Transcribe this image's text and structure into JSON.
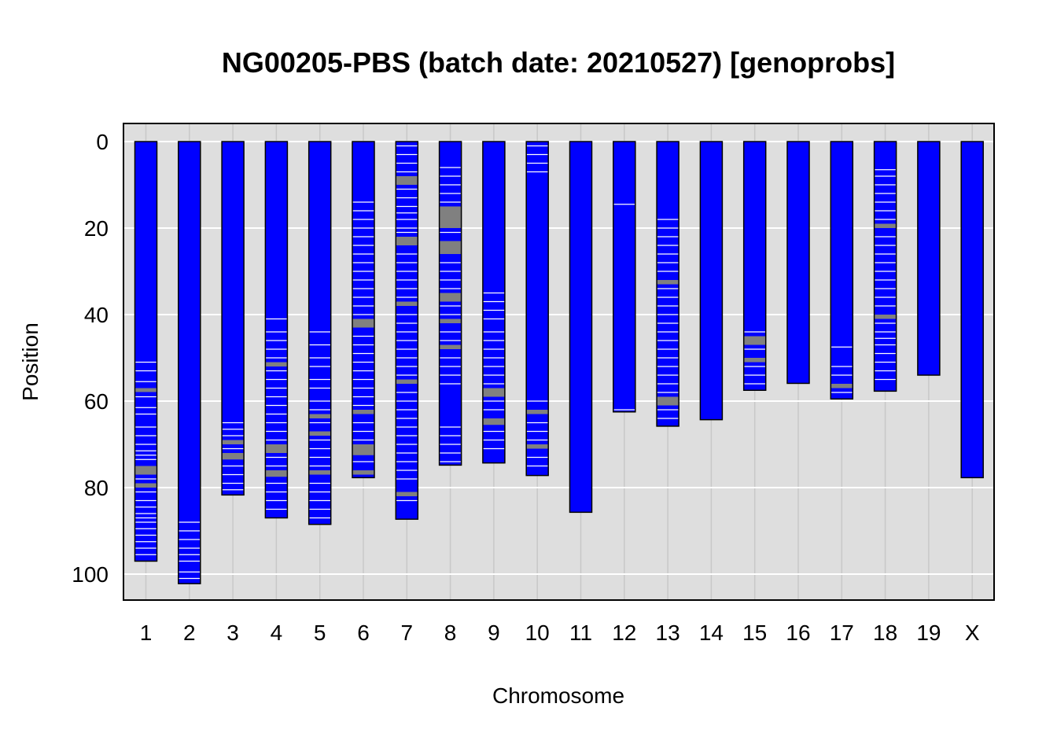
{
  "chart_data": {
    "type": "chromosome_ideogram",
    "title": "NG00205-PBS (batch date: 20210527) [genoprobs]",
    "xlabel": "Chromosome",
    "ylabel": "Position",
    "y_axis_reversed": true,
    "ylim": [
      0,
      106
    ],
    "yticks": [
      0,
      20,
      40,
      60,
      80,
      100
    ],
    "grid": true,
    "colors": {
      "homozygous": "#0000ff",
      "heterozygous": "#808080",
      "background": "#dedede",
      "gridline": "#ffffff"
    },
    "chromosomes": [
      {
        "name": "1",
        "length": 97.0,
        "het": [
          [
            57,
            57.9
          ],
          [
            75,
            77
          ],
          [
            79,
            80
          ]
        ],
        "white": [
          51,
          53,
          55.5,
          59,
          61.5,
          63,
          66,
          68,
          70,
          71.5,
          72.5,
          73.5,
          78,
          81,
          83,
          84.5,
          86,
          87,
          88,
          89.5,
          91,
          92.5,
          94,
          95.5
        ]
      },
      {
        "name": "2",
        "length": 102.2,
        "het": [],
        "white": [
          88,
          90,
          92,
          94,
          95.5,
          97,
          99.5,
          101
        ]
      },
      {
        "name": "3",
        "length": 81.7,
        "het": [
          [
            69,
            70
          ],
          [
            72,
            73.5
          ]
        ],
        "white": [
          65,
          66.5,
          68,
          71,
          75,
          77,
          79,
          80.5
        ]
      },
      {
        "name": "4",
        "length": 87.0,
        "het": [
          [
            51,
            52
          ],
          [
            70,
            72
          ],
          [
            76,
            77.5
          ]
        ],
        "white": [
          41,
          44,
          46,
          48,
          50,
          53,
          55,
          57,
          59,
          61,
          63,
          65,
          67,
          69,
          73,
          75,
          79,
          81,
          83,
          85
        ]
      },
      {
        "name": "5",
        "length": 88.5,
        "het": [
          [
            63,
            64
          ],
          [
            67,
            68
          ],
          [
            76,
            77
          ]
        ],
        "white": [
          44,
          47,
          50,
          52,
          55,
          57,
          60,
          62,
          65,
          69,
          71,
          73,
          75,
          79,
          81,
          83,
          85,
          87
        ]
      },
      {
        "name": "6",
        "length": 77.7,
        "het": [
          [
            41,
            43
          ],
          [
            62,
            63
          ],
          [
            70,
            72.5
          ],
          [
            76,
            77
          ]
        ],
        "white": [
          14,
          16,
          18,
          20,
          22,
          24,
          26,
          28,
          30,
          32,
          34,
          36,
          38,
          40,
          45,
          47,
          49,
          51,
          53,
          55,
          57,
          59,
          61,
          65,
          67,
          69,
          74
        ]
      },
      {
        "name": "7",
        "length": 87.3,
        "het": [
          [
            8,
            10
          ],
          [
            22,
            24
          ],
          [
            37,
            38
          ],
          [
            55,
            56
          ],
          [
            81,
            82
          ]
        ],
        "white": [
          1,
          3,
          5,
          7,
          11,
          13,
          15,
          16.5,
          18,
          20,
          21,
          26,
          28,
          30,
          32,
          34,
          36,
          40,
          42,
          44,
          46,
          48,
          50,
          52,
          54,
          58,
          60,
          62,
          64,
          66,
          68,
          70,
          72,
          74,
          76,
          78,
          83
        ]
      },
      {
        "name": "8",
        "length": 74.8,
        "het": [
          [
            15,
            20
          ],
          [
            23,
            26
          ],
          [
            35,
            37
          ],
          [
            41,
            42
          ],
          [
            47,
            48
          ]
        ],
        "white": [
          6,
          8,
          10,
          12,
          14,
          21,
          28,
          30,
          32,
          34,
          38,
          40,
          44,
          46,
          50,
          52,
          54,
          56,
          66,
          68,
          70,
          72,
          74
        ]
      },
      {
        "name": "9",
        "length": 74.3,
        "het": [
          [
            57,
            59
          ],
          [
            64,
            65.5
          ]
        ],
        "white": [
          35,
          37,
          39,
          41,
          44,
          46,
          48,
          50,
          52,
          54,
          56,
          60,
          62,
          67,
          69,
          71
        ]
      },
      {
        "name": "10",
        "length": 77.2,
        "het": [
          [
            62,
            63
          ],
          [
            70,
            71
          ]
        ],
        "white": [
          1,
          3,
          5,
          7,
          60,
          65,
          67,
          69,
          73,
          75
        ]
      },
      {
        "name": "11",
        "length": 85.7,
        "het": [],
        "white": []
      },
      {
        "name": "12",
        "length": 62.5,
        "het": [],
        "white": [
          14.5,
          62
        ]
      },
      {
        "name": "13",
        "length": 65.8,
        "het": [
          [
            32,
            33
          ],
          [
            59,
            61
          ]
        ],
        "white": [
          18,
          20,
          22,
          24,
          26,
          28,
          30,
          34,
          36,
          38,
          40,
          42,
          44,
          46,
          48,
          50,
          52,
          54,
          56,
          58,
          62,
          64
        ]
      },
      {
        "name": "14",
        "length": 64.3,
        "het": [],
        "white": []
      },
      {
        "name": "15",
        "length": 57.5,
        "het": [
          [
            45,
            47
          ],
          [
            50,
            51
          ]
        ],
        "white": [
          44,
          48,
          52,
          54,
          56
        ]
      },
      {
        "name": "16",
        "length": 55.9,
        "het": [],
        "white": []
      },
      {
        "name": "17",
        "length": 59.5,
        "het": [
          [
            56,
            57
          ]
        ],
        "white": [
          47.5,
          52,
          54,
          58
        ]
      },
      {
        "name": "18",
        "length": 57.7,
        "het": [
          [
            19,
            20
          ],
          [
            40,
            41
          ]
        ],
        "white": [
          6.5,
          8,
          10,
          12,
          14,
          16,
          18,
          22,
          24,
          26,
          28,
          30,
          32,
          34,
          36,
          38,
          42,
          44,
          45.5,
          47,
          49,
          51,
          53,
          55
        ]
      },
      {
        "name": "19",
        "length": 54.0,
        "het": [],
        "white": []
      },
      {
        "name": "X",
        "length": 77.7,
        "het": [],
        "white": []
      }
    ]
  }
}
